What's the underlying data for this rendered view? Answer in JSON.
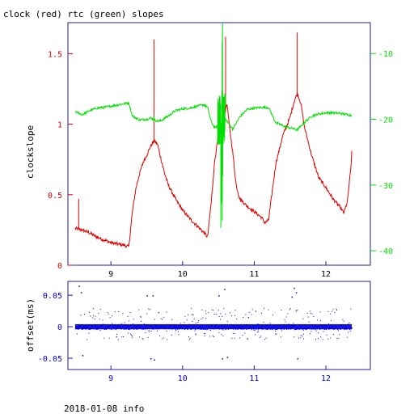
{
  "page_title": "clock (red) rtc (green) slopes",
  "footer": "2018-01-08 info",
  "colors": {
    "clock": "#e00000",
    "rtc": "#00e000",
    "offset": "#0000e0",
    "axis": "#1c1ca8",
    "text": "#000000"
  },
  "chart_data": [
    {
      "type": "line",
      "title": "clock (red) rtc (green) slopes",
      "xlabel": "",
      "ylabel": "clockslope",
      "xlim": [
        8.4,
        12.62
      ],
      "ylim": [
        0,
        1.72
      ],
      "y2lim": [
        -42.2,
        -5.3
      ],
      "x_ticks": [
        9,
        10,
        11,
        12
      ],
      "x_tick_labels": [
        "9",
        "10",
        "11",
        "12"
      ],
      "y_ticks": [
        0,
        0.5,
        1,
        1.5
      ],
      "y_tick_labels": [
        "0",
        "0.5",
        "1",
        "1.5"
      ],
      "y2_ticks": [
        -40,
        -30,
        -20,
        -10
      ],
      "y2_tick_labels": [
        "-40",
        "-30",
        "-20",
        "-10"
      ],
      "grid": false,
      "series": [
        {
          "name": "clock",
          "axis": "left",
          "color": "#e00000",
          "points": [
            [
              8.5,
              0.26
            ],
            [
              8.6,
              0.25
            ],
            [
              8.7,
              0.23
            ],
            [
              8.8,
              0.2
            ],
            [
              8.9,
              0.18
            ],
            [
              9.0,
              0.16
            ],
            [
              9.1,
              0.15
            ],
            [
              9.2,
              0.14
            ],
            [
              9.25,
              0.13
            ],
            [
              9.3,
              0.38
            ],
            [
              9.35,
              0.55
            ],
            [
              9.4,
              0.65
            ],
            [
              9.45,
              0.73
            ],
            [
              9.5,
              0.78
            ],
            [
              9.55,
              0.84
            ],
            [
              9.6,
              0.88
            ],
            [
              9.65,
              0.86
            ],
            [
              9.7,
              0.75
            ],
            [
              9.75,
              0.65
            ],
            [
              9.8,
              0.57
            ],
            [
              9.9,
              0.47
            ],
            [
              10.0,
              0.39
            ],
            [
              10.1,
              0.33
            ],
            [
              10.2,
              0.28
            ],
            [
              10.3,
              0.23
            ],
            [
              10.35,
              0.2
            ],
            [
              10.4,
              0.45
            ],
            [
              10.45,
              0.75
            ],
            [
              10.5,
              0.92
            ],
            [
              10.55,
              1.01
            ],
            [
              10.6,
              1.1
            ],
            [
              10.62,
              1.15
            ],
            [
              10.65,
              1.0
            ],
            [
              10.7,
              0.8
            ],
            [
              10.75,
              0.56
            ],
            [
              10.8,
              0.47
            ],
            [
              10.9,
              0.42
            ],
            [
              11.0,
              0.38
            ],
            [
              11.1,
              0.34
            ],
            [
              11.15,
              0.3
            ],
            [
              11.2,
              0.32
            ],
            [
              11.3,
              0.72
            ],
            [
              11.4,
              0.92
            ],
            [
              11.5,
              1.05
            ],
            [
              11.55,
              1.15
            ],
            [
              11.6,
              1.22
            ],
            [
              11.65,
              1.15
            ],
            [
              11.7,
              0.98
            ],
            [
              11.8,
              0.78
            ],
            [
              11.9,
              0.62
            ],
            [
              12.0,
              0.55
            ],
            [
              12.1,
              0.47
            ],
            [
              12.2,
              0.41
            ],
            [
              12.25,
              0.37
            ],
            [
              12.3,
              0.45
            ],
            [
              12.35,
              0.7
            ],
            [
              12.36,
              0.8
            ]
          ],
          "spikes": [
            [
              8.55,
              0.47
            ],
            [
              9.6,
              1.6
            ],
            [
              10.6,
              1.62
            ],
            [
              11.6,
              1.65
            ]
          ]
        },
        {
          "name": "rtc",
          "axis": "right",
          "color": "#00e000",
          "points": [
            [
              8.5,
              -18.8
            ],
            [
              8.6,
              -19.3
            ],
            [
              8.7,
              -18.7
            ],
            [
              8.8,
              -18.3
            ],
            [
              8.9,
              -18.2
            ],
            [
              9.0,
              -18.0
            ],
            [
              9.1,
              -17.8
            ],
            [
              9.2,
              -17.6
            ],
            [
              9.25,
              -17.5
            ],
            [
              9.3,
              -19.5
            ],
            [
              9.4,
              -20.1
            ],
            [
              9.5,
              -20.0
            ],
            [
              9.55,
              -19.8
            ],
            [
              9.65,
              -20.3
            ],
            [
              9.7,
              -20.2
            ],
            [
              9.8,
              -19.5
            ],
            [
              9.9,
              -18.7
            ],
            [
              10.0,
              -18.4
            ],
            [
              10.1,
              -18.3
            ],
            [
              10.2,
              -18.0
            ],
            [
              10.3,
              -17.8
            ],
            [
              10.35,
              -18.2
            ],
            [
              10.4,
              -20.4
            ],
            [
              10.45,
              -21.3
            ],
            [
              10.5,
              -21.0
            ],
            [
              10.6,
              -20.0
            ],
            [
              10.7,
              -21.5
            ],
            [
              10.8,
              -19.6
            ],
            [
              10.9,
              -18.5
            ],
            [
              11.0,
              -18.3
            ],
            [
              11.1,
              -18.2
            ],
            [
              11.2,
              -18.2
            ],
            [
              11.3,
              -20.5
            ],
            [
              11.4,
              -21.0
            ],
            [
              11.5,
              -21.3
            ],
            [
              11.6,
              -21.6
            ],
            [
              11.7,
              -20.5
            ],
            [
              11.8,
              -19.5
            ],
            [
              11.9,
              -19.2
            ],
            [
              12.0,
              -19.0
            ],
            [
              12.1,
              -19.0
            ],
            [
              12.2,
              -19.1
            ],
            [
              12.3,
              -19.3
            ],
            [
              12.36,
              -19.4
            ]
          ],
          "spikes": [
            [
              9.6,
              -19.5
            ],
            [
              10.5,
              -17.0
            ],
            [
              10.52,
              -21.0
            ],
            [
              10.55,
              -20.5
            ],
            [
              10.58,
              -21.0
            ],
            [
              11.58,
              -21.5
            ]
          ]
        }
      ]
    },
    {
      "type": "scatter",
      "xlabel": "",
      "ylabel": "offset(ms)",
      "xlim": [
        8.4,
        12.62
      ],
      "ylim": [
        -0.068,
        0.072
      ],
      "x_ticks": [
        9,
        10,
        11,
        12
      ],
      "x_tick_labels": [
        "9",
        "10",
        "11",
        "12"
      ],
      "y_ticks": [
        -0.05,
        0,
        0.05
      ],
      "y_tick_labels": [
        "-0.05",
        "0",
        "0.05"
      ],
      "grid": false,
      "series": [
        {
          "name": "offset",
          "color": "#0000e0",
          "x_range": [
            8.5,
            12.36
          ],
          "baseline": 0.0,
          "band": [
            -0.004,
            0.004
          ],
          "typical_spread": [
            -0.02,
            0.03
          ],
          "outliers": [
            [
              8.55,
              0.065
            ],
            [
              8.6,
              -0.045
            ],
            [
              8.58,
              0.055
            ],
            [
              9.5,
              0.05
            ],
            [
              9.55,
              -0.05
            ],
            [
              9.58,
              0.05
            ],
            [
              9.6,
              -0.052
            ],
            [
              10.5,
              0.05
            ],
            [
              10.55,
              -0.05
            ],
            [
              10.58,
              0.06
            ],
            [
              10.62,
              -0.048
            ],
            [
              11.55,
              0.062
            ],
            [
              11.6,
              -0.05
            ],
            [
              11.58,
              0.055
            ],
            [
              11.52,
              0.048
            ]
          ]
        }
      ]
    }
  ]
}
